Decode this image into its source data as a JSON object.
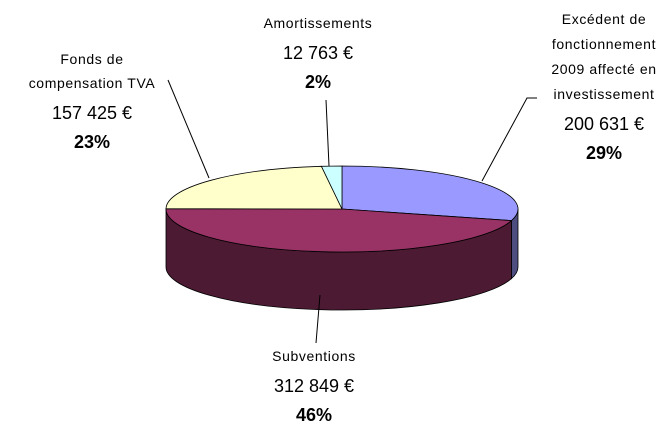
{
  "chart_data": {
    "type": "pie3d",
    "categories": [
      "Excédent de fonctionnement 2009 affecté en investissement",
      "Subventions",
      "Fonds de compensation TVA",
      "Amortissements"
    ],
    "values": [
      200631,
      312849,
      157425,
      12763
    ],
    "value_labels": [
      "200 631 €",
      "312 849 €",
      "157 425 €",
      "12 763 €"
    ],
    "percents": [
      29,
      46,
      23,
      2
    ],
    "percent_labels": [
      "29%",
      "46%",
      "23%",
      "2%"
    ],
    "colors": [
      "#9999ff",
      "#993366",
      "#ffffcc",
      "#ccffff"
    ],
    "side_colors": [
      "#4d4d80",
      "#4d1a33",
      "#80806a",
      "#668080"
    ]
  }
}
